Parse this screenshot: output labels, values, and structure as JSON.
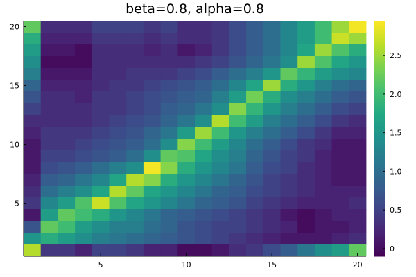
{
  "chart_data": {
    "type": "heatmap",
    "title": "beta=0.8, alpha=0.8",
    "xlabel": "",
    "ylabel": "",
    "x_range": [
      0.5,
      20.5
    ],
    "y_range": [
      0.5,
      20.5
    ],
    "x_ticks": [
      5,
      10,
      15,
      20
    ],
    "y_ticks": [
      5,
      10,
      15,
      20
    ],
    "colorbar": {
      "colormap": "viridis",
      "range": [
        -0.1,
        2.95
      ],
      "ticks": [
        0.0,
        0.5,
        1.0,
        1.5,
        2.0,
        2.5
      ],
      "tick_labels": [
        "0",
        "0.5",
        "1.0",
        "1.5",
        "2.0",
        "2.5"
      ]
    },
    "rows_top_to_bottom": [
      [
        2.2,
        0.3,
        0.3,
        0.3,
        0.5,
        0.5,
        0.5,
        0.4,
        0.5,
        0.3,
        0.3,
        0.4,
        0.6,
        0.8,
        1.0,
        1.3,
        1.6,
        2.0,
        2.5,
        2.9
      ],
      [
        1.8,
        0.2,
        0.2,
        0.2,
        0.4,
        0.4,
        0.4,
        0.3,
        0.4,
        0.3,
        0.3,
        0.4,
        0.6,
        0.8,
        1.0,
        1.3,
        1.6,
        2.0,
        2.7,
        2.5
      ],
      [
        1.6,
        0.1,
        0.1,
        0.0,
        0.3,
        0.3,
        0.3,
        0.2,
        0.3,
        0.1,
        0.2,
        0.4,
        0.6,
        0.8,
        1.0,
        1.3,
        1.7,
        2.5,
        2.1,
        1.8
      ],
      [
        1.4,
        0.0,
        0.0,
        0.0,
        0.3,
        0.3,
        0.3,
        0.3,
        0.3,
        0.3,
        0.4,
        0.5,
        0.7,
        0.9,
        1.1,
        1.4,
        2.5,
        2.1,
        1.7,
        1.5
      ],
      [
        1.2,
        0.1,
        0.1,
        0.1,
        0.3,
        0.3,
        0.4,
        0.4,
        0.4,
        0.5,
        0.6,
        0.8,
        1.0,
        1.2,
        1.5,
        2.2,
        1.9,
        1.6,
        1.4,
        1.3
      ],
      [
        0.9,
        0.2,
        0.2,
        0.2,
        0.3,
        0.4,
        0.4,
        0.5,
        0.6,
        0.7,
        0.8,
        1.0,
        1.3,
        1.7,
        2.5,
        1.8,
        1.5,
        1.2,
        1.0,
        0.9
      ],
      [
        0.7,
        0.3,
        0.3,
        0.2,
        0.4,
        0.4,
        0.5,
        0.6,
        0.7,
        0.8,
        0.9,
        1.2,
        1.6,
        2.3,
        1.8,
        1.4,
        1.2,
        1.0,
        0.8,
        0.7
      ],
      [
        0.5,
        0.3,
        0.3,
        0.3,
        0.4,
        0.4,
        0.5,
        0.6,
        0.8,
        0.9,
        1.1,
        1.4,
        2.4,
        1.9,
        1.5,
        1.2,
        1.0,
        0.8,
        0.6,
        0.5
      ],
      [
        0.3,
        0.3,
        0.3,
        0.3,
        0.4,
        0.5,
        0.6,
        0.7,
        0.9,
        1.1,
        1.4,
        2.6,
        2.0,
        1.6,
        1.2,
        1.0,
        0.8,
        0.6,
        0.4,
        0.3
      ],
      [
        0.2,
        0.4,
        0.4,
        0.4,
        0.5,
        0.6,
        0.7,
        0.9,
        1.1,
        1.6,
        2.5,
        2.0,
        1.5,
        1.2,
        1.0,
        0.8,
        0.6,
        0.4,
        0.2,
        0.2
      ],
      [
        0.1,
        0.4,
        0.4,
        0.5,
        0.6,
        0.7,
        0.8,
        1.0,
        1.4,
        2.4,
        2.0,
        1.6,
        1.3,
        1.0,
        0.8,
        0.6,
        0.4,
        0.3,
        0.1,
        0.1
      ],
      [
        0.1,
        0.5,
        0.5,
        0.6,
        0.7,
        0.8,
        1.0,
        1.4,
        2.2,
        2.1,
        1.7,
        1.4,
        1.2,
        0.9,
        0.7,
        0.5,
        0.4,
        0.2,
        0.1,
        0.1
      ],
      [
        0.1,
        0.6,
        0.7,
        0.8,
        1.0,
        1.2,
        1.4,
        2.9,
        2.4,
        1.8,
        1.5,
        1.3,
        1.1,
        0.8,
        0.6,
        0.5,
        0.3,
        0.2,
        0.1,
        0.1
      ],
      [
        0.2,
        0.8,
        0.9,
        1.1,
        1.3,
        1.7,
        2.6,
        2.4,
        1.8,
        1.5,
        1.3,
        1.1,
        0.9,
        0.7,
        0.5,
        0.4,
        0.3,
        0.2,
        0.1,
        0.1
      ],
      [
        0.3,
        1.0,
        1.2,
        1.4,
        1.7,
        2.6,
        2.2,
        1.7,
        1.5,
        1.3,
        1.1,
        0.9,
        0.8,
        0.6,
        0.5,
        0.4,
        0.3,
        0.2,
        0.2,
        0.2
      ],
      [
        0.4,
        1.3,
        1.6,
        2.1,
        2.7,
        2.1,
        1.7,
        1.5,
        1.3,
        1.1,
        0.9,
        0.8,
        0.7,
        0.5,
        0.4,
        0.3,
        0.2,
        0.2,
        0.2,
        0.3
      ],
      [
        0.1,
        1.6,
        2.2,
        2.0,
        1.8,
        1.5,
        1.3,
        1.1,
        0.9,
        0.8,
        0.7,
        0.6,
        0.5,
        0.4,
        0.3,
        0.1,
        0.0,
        0.1,
        0.2,
        0.2
      ],
      [
        0.7,
        2.2,
        2.0,
        1.6,
        1.4,
        1.2,
        1.2,
        1.0,
        0.9,
        0.7,
        0.6,
        0.5,
        0.5,
        0.4,
        0.3,
        0.2,
        0.0,
        0.1,
        0.1,
        0.2
      ],
      [
        1.5,
        1.8,
        1.6,
        1.4,
        1.2,
        1.1,
        1.0,
        0.9,
        0.8,
        0.7,
        0.6,
        0.5,
        0.4,
        0.3,
        0.2,
        0.1,
        0.1,
        0.1,
        0.2,
        0.3
      ],
      [
        2.6,
        0.4,
        0.4,
        0.2,
        0.5,
        0.5,
        0.4,
        0.2,
        0.2,
        0.0,
        0.0,
        0.1,
        0.3,
        0.4,
        0.6,
        0.8,
        1.1,
        1.4,
        1.6,
        2.2
      ]
    ]
  }
}
